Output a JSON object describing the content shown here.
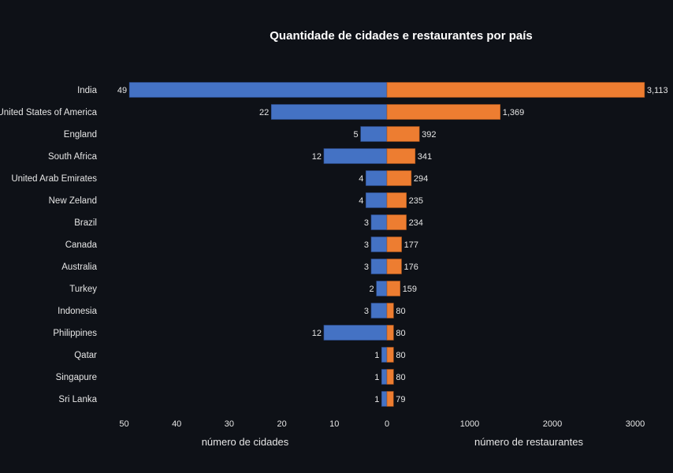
{
  "chart_data": {
    "type": "bar",
    "title": "Quantidade de cidades e restaurantes por país",
    "categories": [
      "India",
      "United States of America",
      "England",
      "South Africa",
      "United Arab Emirates",
      "New Zeland",
      "Brazil",
      "Canada",
      "Australia",
      "Turkey",
      "Indonesia",
      "Philippines",
      "Qatar",
      "Singapure",
      "Sri Lanka"
    ],
    "series": [
      {
        "color": "#4472c4",
        "values": [
          49,
          22,
          5,
          12,
          4,
          4,
          3,
          3,
          3,
          2,
          3,
          12,
          1,
          1,
          1
        ],
        "value_labels": [
          "49",
          "22",
          "5",
          "12",
          "4",
          "4",
          "3",
          "3",
          "3",
          "2",
          "3",
          "12",
          "1",
          "1",
          "1"
        ]
      },
      {
        "color": "#ed7d31",
        "values": [
          3113,
          1369,
          392,
          341,
          294,
          235,
          234,
          177,
          176,
          159,
          80,
          80,
          80,
          80,
          79
        ],
        "value_labels": [
          "3,113",
          "1,369",
          "392",
          "341",
          "294",
          "235",
          "234",
          "177",
          "176",
          "159",
          "80",
          "80",
          "80",
          "80",
          "79"
        ]
      }
    ],
    "left_axis": {
      "xlabel": "número de cidades",
      "xlim": [
        50,
        0
      ],
      "ticks": [
        "50",
        "40",
        "30",
        "20",
        "10",
        "0"
      ],
      "tick_values": [
        50,
        40,
        30,
        20,
        10,
        0
      ]
    },
    "right_axis": {
      "xlabel": "número de restaurantes",
      "xlim": [
        0,
        3113
      ],
      "ticks": [
        "1000",
        "2000",
        "3000"
      ],
      "tick_values": [
        1000,
        2000,
        3000
      ]
    },
    "grid": false,
    "colors": {
      "background": "#0e1117",
      "text": "#e6e6e6",
      "title": "#ffffff"
    }
  }
}
